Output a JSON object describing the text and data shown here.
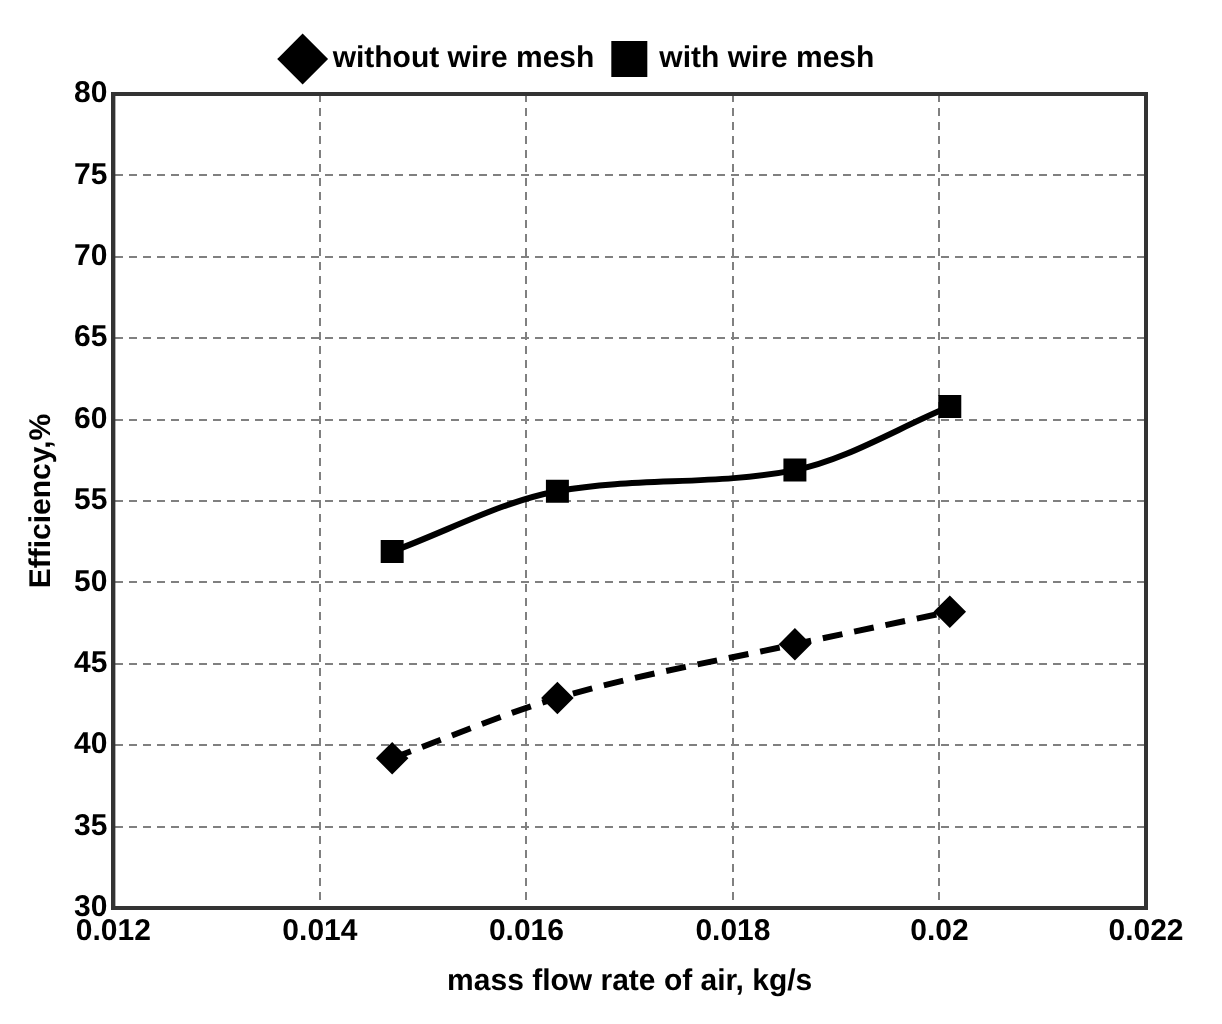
{
  "chart_data": {
    "type": "line",
    "xlabel": "mass flow rate of air, kg/s",
    "ylabel": "Efficiency,%",
    "series": [
      {
        "name": "without wire mesh",
        "color": "#000000",
        "line_style": "dashed",
        "marker": "diamond",
        "x": [
          0.0147,
          0.0163,
          0.0186,
          0.0201
        ],
        "values": [
          39.2,
          42.9,
          46.2,
          48.2
        ]
      },
      {
        "name": "with wire mesh",
        "color": "#000000",
        "line_style": "solid",
        "marker": "square",
        "x": [
          0.0147,
          0.0163,
          0.0186,
          0.0201
        ],
        "values": [
          51.9,
          55.6,
          56.9,
          60.8
        ]
      }
    ],
    "xlim": [
      0.012,
      0.022
    ],
    "xticks": [
      0.012,
      0.014,
      0.016,
      0.018,
      0.02,
      0.022
    ],
    "ylim": [
      30,
      80
    ],
    "yticks": [
      30,
      35,
      40,
      45,
      50,
      55,
      60,
      65,
      70,
      75,
      80
    ],
    "grid": true,
    "legend": "top"
  }
}
